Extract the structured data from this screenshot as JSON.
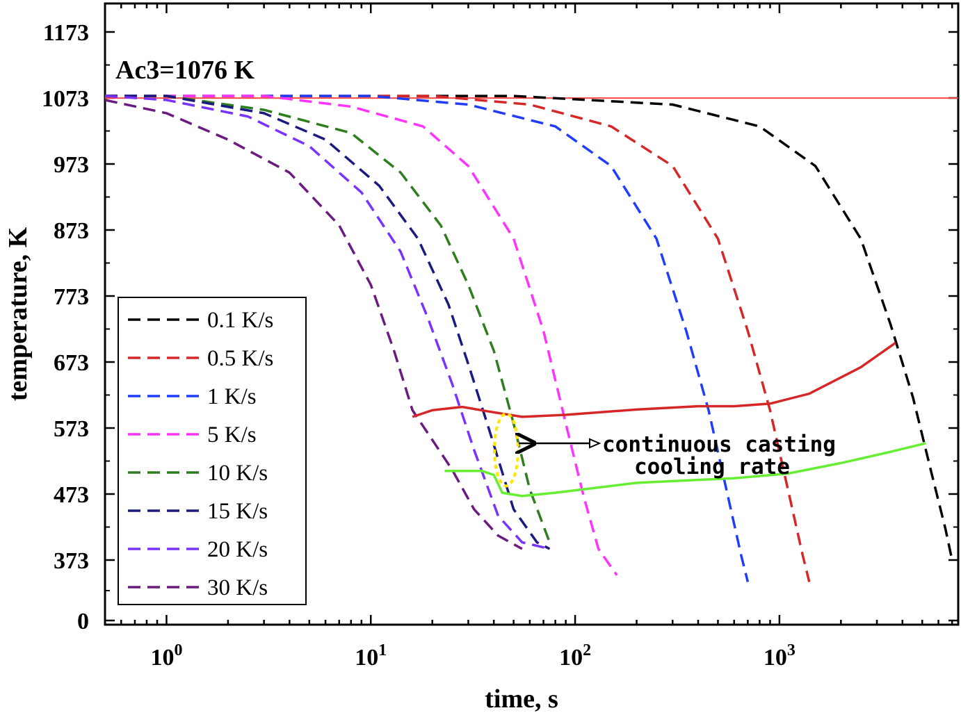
{
  "chart_data": {
    "type": "line",
    "xlabel": "time, s",
    "ylabel": "temperature, K",
    "xscale": "log",
    "xlim": [
      0.5,
      7500
    ],
    "xticks": [
      {
        "value": 1,
        "base": "10",
        "exp": "0"
      },
      {
        "value": 10,
        "base": "10",
        "exp": "1"
      },
      {
        "value": 100,
        "base": "10",
        "exp": "2"
      },
      {
        "value": 1000,
        "base": "10",
        "exp": "3"
      }
    ],
    "yticks": [
      "0",
      "373",
      "473",
      "573",
      "673",
      "773",
      "873",
      "973",
      "1073",
      "1173"
    ],
    "grid": false,
    "legend_position": "bottom-left",
    "annotations": {
      "ac3": "Ac3=1076 K",
      "cc_line1": "continuous casting",
      "cc_line2": "cooling rate"
    },
    "reference_line": {
      "y": 1076,
      "color": "#ff4444"
    },
    "series": [
      {
        "name": "0.1 K/s",
        "color": "#000000",
        "style": "dashed",
        "points": [
          [
            0.5,
            1076
          ],
          [
            50,
            1076
          ],
          [
            300,
            1063
          ],
          [
            800,
            1030
          ],
          [
            1500,
            970
          ],
          [
            2500,
            860
          ],
          [
            3500,
            730
          ],
          [
            4500,
            620
          ],
          [
            5500,
            510
          ],
          [
            6500,
            420
          ],
          [
            7000,
            373
          ]
        ]
      },
      {
        "name": "0.5 K/s",
        "color": "#d62728",
        "style": "dashed",
        "points": [
          [
            0.5,
            1076
          ],
          [
            20,
            1076
          ],
          [
            60,
            1063
          ],
          [
            150,
            1030
          ],
          [
            300,
            970
          ],
          [
            500,
            860
          ],
          [
            700,
            720
          ],
          [
            900,
            600
          ],
          [
            1100,
            480
          ],
          [
            1300,
            380
          ],
          [
            1400,
            340
          ]
        ]
      },
      {
        "name": "1 K/s",
        "color": "#1f3cff",
        "style": "dashed",
        "points": [
          [
            0.5,
            1076
          ],
          [
            10,
            1076
          ],
          [
            30,
            1063
          ],
          [
            80,
            1030
          ],
          [
            150,
            970
          ],
          [
            250,
            860
          ],
          [
            350,
            720
          ],
          [
            450,
            600
          ],
          [
            550,
            480
          ],
          [
            650,
            380
          ],
          [
            700,
            340
          ]
        ]
      },
      {
        "name": "5 K/s",
        "color": "#ff33ff",
        "style": "dashed",
        "points": [
          [
            0.5,
            1076
          ],
          [
            3,
            1076
          ],
          [
            8,
            1060
          ],
          [
            18,
            1030
          ],
          [
            30,
            970
          ],
          [
            50,
            860
          ],
          [
            70,
            720
          ],
          [
            90,
            580
          ],
          [
            110,
            470
          ],
          [
            130,
            390
          ],
          [
            160,
            350
          ]
        ]
      },
      {
        "name": "10 K/s",
        "color": "#2e7d1e",
        "style": "dashed",
        "points": [
          [
            0.5,
            1076
          ],
          [
            1,
            1076
          ],
          [
            3,
            1055
          ],
          [
            8,
            1020
          ],
          [
            14,
            960
          ],
          [
            22,
            880
          ],
          [
            30,
            790
          ],
          [
            40,
            690
          ],
          [
            50,
            580
          ],
          [
            60,
            480
          ],
          [
            75,
            400
          ]
        ]
      },
      {
        "name": "15 K/s",
        "color": "#1a1a80",
        "style": "dashed",
        "points": [
          [
            0.5,
            1076
          ],
          [
            1,
            1076
          ],
          [
            3,
            1050
          ],
          [
            6,
            1010
          ],
          [
            11,
            940
          ],
          [
            17,
            860
          ],
          [
            24,
            760
          ],
          [
            30,
            670
          ],
          [
            38,
            570
          ],
          [
            50,
            450
          ],
          [
            65,
            400
          ],
          [
            75,
            390
          ]
        ]
      },
      {
        "name": "20 K/s",
        "color": "#7a33ff",
        "style": "dashed",
        "points": [
          [
            0.5,
            1076
          ],
          [
            1,
            1070
          ],
          [
            2.5,
            1045
          ],
          [
            5,
            1000
          ],
          [
            9,
            930
          ],
          [
            14,
            840
          ],
          [
            19,
            740
          ],
          [
            25,
            640
          ],
          [
            32,
            540
          ],
          [
            42,
            440
          ],
          [
            55,
            400
          ],
          [
            75,
            390
          ]
        ]
      },
      {
        "name": "30 K/s",
        "color": "#6b1a80",
        "style": "dashed",
        "points": [
          [
            0.5,
            1070
          ],
          [
            1,
            1050
          ],
          [
            2,
            1010
          ],
          [
            4,
            960
          ],
          [
            7,
            880
          ],
          [
            10,
            790
          ],
          [
            13,
            690
          ],
          [
            16,
            600
          ],
          [
            20,
            555
          ],
          [
            25,
            510
          ],
          [
            32,
            450
          ],
          [
            42,
            410
          ],
          [
            55,
            390
          ]
        ]
      },
      {
        "name": "",
        "color": "#d62728",
        "style": "solid",
        "points": [
          [
            16,
            590
          ],
          [
            20,
            600
          ],
          [
            28,
            605
          ],
          [
            38,
            598
          ],
          [
            55,
            590
          ],
          [
            90,
            593
          ],
          [
            200,
            601
          ],
          [
            400,
            606
          ],
          [
            600,
            606
          ],
          [
            900,
            610
          ],
          [
            1400,
            625
          ],
          [
            2500,
            665
          ],
          [
            3700,
            702
          ]
        ]
      },
      {
        "name": "",
        "color": "#66ee33",
        "style": "solid",
        "points": [
          [
            23,
            508
          ],
          [
            35,
            508
          ],
          [
            40,
            502
          ],
          [
            44,
            475
          ],
          [
            55,
            470
          ],
          [
            80,
            475
          ],
          [
            200,
            490
          ],
          [
            600,
            497
          ],
          [
            1100,
            504
          ],
          [
            2000,
            520
          ],
          [
            3500,
            537
          ],
          [
            5200,
            550
          ]
        ]
      }
    ]
  }
}
